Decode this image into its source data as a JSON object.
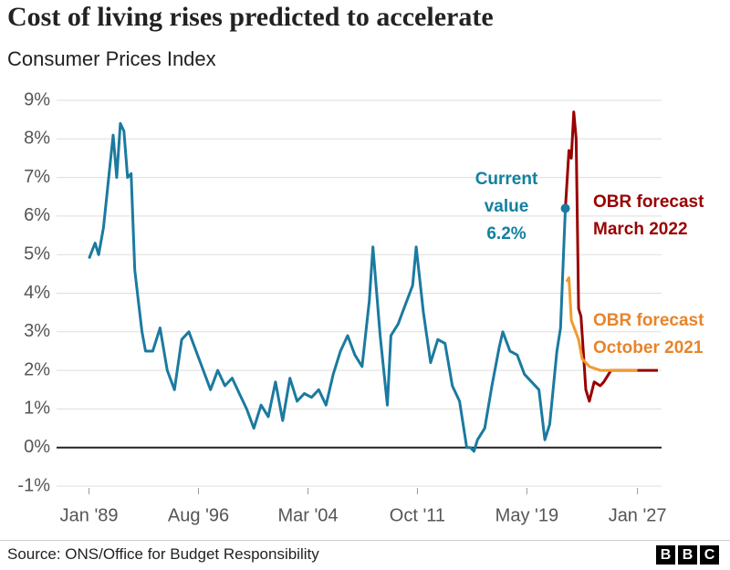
{
  "chart_data": {
    "type": "line",
    "title": "Cost of living rises predicted to accelerate",
    "subtitle": "Consumer Prices Index",
    "xlim": [
      "1986-10",
      "2028-09"
    ],
    "xticks": [
      {
        "value": "1989-01",
        "label": "Jan '89"
      },
      {
        "value": "1996-08",
        "label": "Aug '96"
      },
      {
        "value": "2004-03",
        "label": "Mar '04"
      },
      {
        "value": "2011-10",
        "label": "Oct '11"
      },
      {
        "value": "2019-05",
        "label": "May '19"
      },
      {
        "value": "2027-01",
        "label": "Jan '27"
      }
    ],
    "ylim": [
      -1,
      9
    ],
    "yticks": [
      {
        "value": -1,
        "label": "-1%"
      },
      {
        "value": 0,
        "label": "0%"
      },
      {
        "value": 1,
        "label": "1%"
      },
      {
        "value": 2,
        "label": "2%"
      },
      {
        "value": 3,
        "label": "3%"
      },
      {
        "value": 4,
        "label": "4%"
      },
      {
        "value": 5,
        "label": "5%"
      },
      {
        "value": 6,
        "label": "6%"
      },
      {
        "value": 7,
        "label": "7%"
      },
      {
        "value": 8,
        "label": "8%"
      },
      {
        "value": 9,
        "label": "9%"
      }
    ],
    "grid": true,
    "annotations": [
      {
        "text": "Current value 6.2%",
        "color": "#1380a1"
      }
    ],
    "series": [
      {
        "name": "Consumer Prices Index",
        "color": "#1b7aa0",
        "x": [
          "1989-01",
          "1989-06",
          "1989-09",
          "1990-01",
          "1990-05",
          "1990-09",
          "1990-12",
          "1991-03",
          "1991-06",
          "1991-09",
          "1991-12",
          "1992-03",
          "1992-06",
          "1992-09",
          "1992-12",
          "1993-06",
          "1993-12",
          "1994-06",
          "1994-12",
          "1995-06",
          "1995-12",
          "1996-06",
          "1996-12",
          "1997-06",
          "1997-12",
          "1998-06",
          "1998-12",
          "1999-06",
          "1999-12",
          "2000-06",
          "2000-12",
          "2001-06",
          "2001-12",
          "2002-06",
          "2002-12",
          "2003-06",
          "2003-12",
          "2004-06",
          "2004-12",
          "2005-06",
          "2005-12",
          "2006-06",
          "2006-12",
          "2007-06",
          "2007-12",
          "2008-06",
          "2008-09",
          "2009-03",
          "2009-09",
          "2009-12",
          "2010-06",
          "2010-12",
          "2011-06",
          "2011-09",
          "2012-03",
          "2012-09",
          "2013-03",
          "2013-09",
          "2014-03",
          "2014-09",
          "2015-03",
          "2015-06",
          "2015-09",
          "2015-12",
          "2016-06",
          "2016-12",
          "2017-06",
          "2017-09",
          "2018-03",
          "2018-09",
          "2019-03",
          "2019-09",
          "2020-03",
          "2020-08",
          "2020-12",
          "2021-06",
          "2021-09",
          "2021-12",
          "2022-01"
        ],
        "values": [
          4.9,
          5.3,
          5.0,
          5.7,
          6.9,
          8.1,
          7.0,
          8.4,
          8.2,
          7.0,
          7.1,
          4.6,
          3.8,
          3.0,
          2.5,
          2.5,
          3.1,
          2.0,
          1.5,
          2.8,
          3.0,
          2.5,
          2.0,
          1.5,
          2.0,
          1.6,
          1.8,
          1.4,
          1.0,
          0.5,
          1.1,
          0.8,
          1.7,
          0.7,
          1.8,
          1.2,
          1.4,
          1.3,
          1.5,
          1.1,
          1.9,
          2.5,
          2.9,
          2.4,
          2.1,
          3.8,
          5.2,
          2.9,
          1.1,
          2.9,
          3.2,
          3.7,
          4.2,
          5.2,
          3.5,
          2.2,
          2.8,
          2.7,
          1.6,
          1.2,
          0.0,
          0.0,
          -0.1,
          0.2,
          0.5,
          1.6,
          2.6,
          3.0,
          2.5,
          2.4,
          1.9,
          1.7,
          1.5,
          0.2,
          0.6,
          2.5,
          3.1,
          5.4,
          6.2
        ]
      },
      {
        "name": "OBR forecast March 2022",
        "color": "#990000",
        "x": [
          "2022-01",
          "2022-04",
          "2022-06",
          "2022-08",
          "2022-10",
          "2022-12",
          "2023-02",
          "2023-06",
          "2023-09",
          "2024-01",
          "2024-06",
          "2024-09",
          "2025-03",
          "2025-09",
          "2028-06"
        ],
        "values": [
          6.2,
          7.7,
          7.5,
          8.7,
          8.0,
          3.6,
          3.4,
          1.5,
          1.2,
          1.7,
          1.6,
          1.7,
          2.0,
          2.0,
          2.0
        ]
      },
      {
        "name": "OBR forecast October 2021",
        "color": "#f29a2e",
        "x": [
          "2022-02",
          "2022-04",
          "2022-06",
          "2022-12",
          "2023-03",
          "2023-09",
          "2024-06",
          "2025-06",
          "2027-01"
        ],
        "values": [
          4.3,
          4.4,
          3.3,
          2.8,
          2.3,
          2.1,
          2.0,
          2.0,
          2.0
        ]
      }
    ]
  },
  "footer": {
    "source": "Source: ONS/Office for Budget Responsibility",
    "logo": [
      "B",
      "B",
      "C"
    ]
  }
}
